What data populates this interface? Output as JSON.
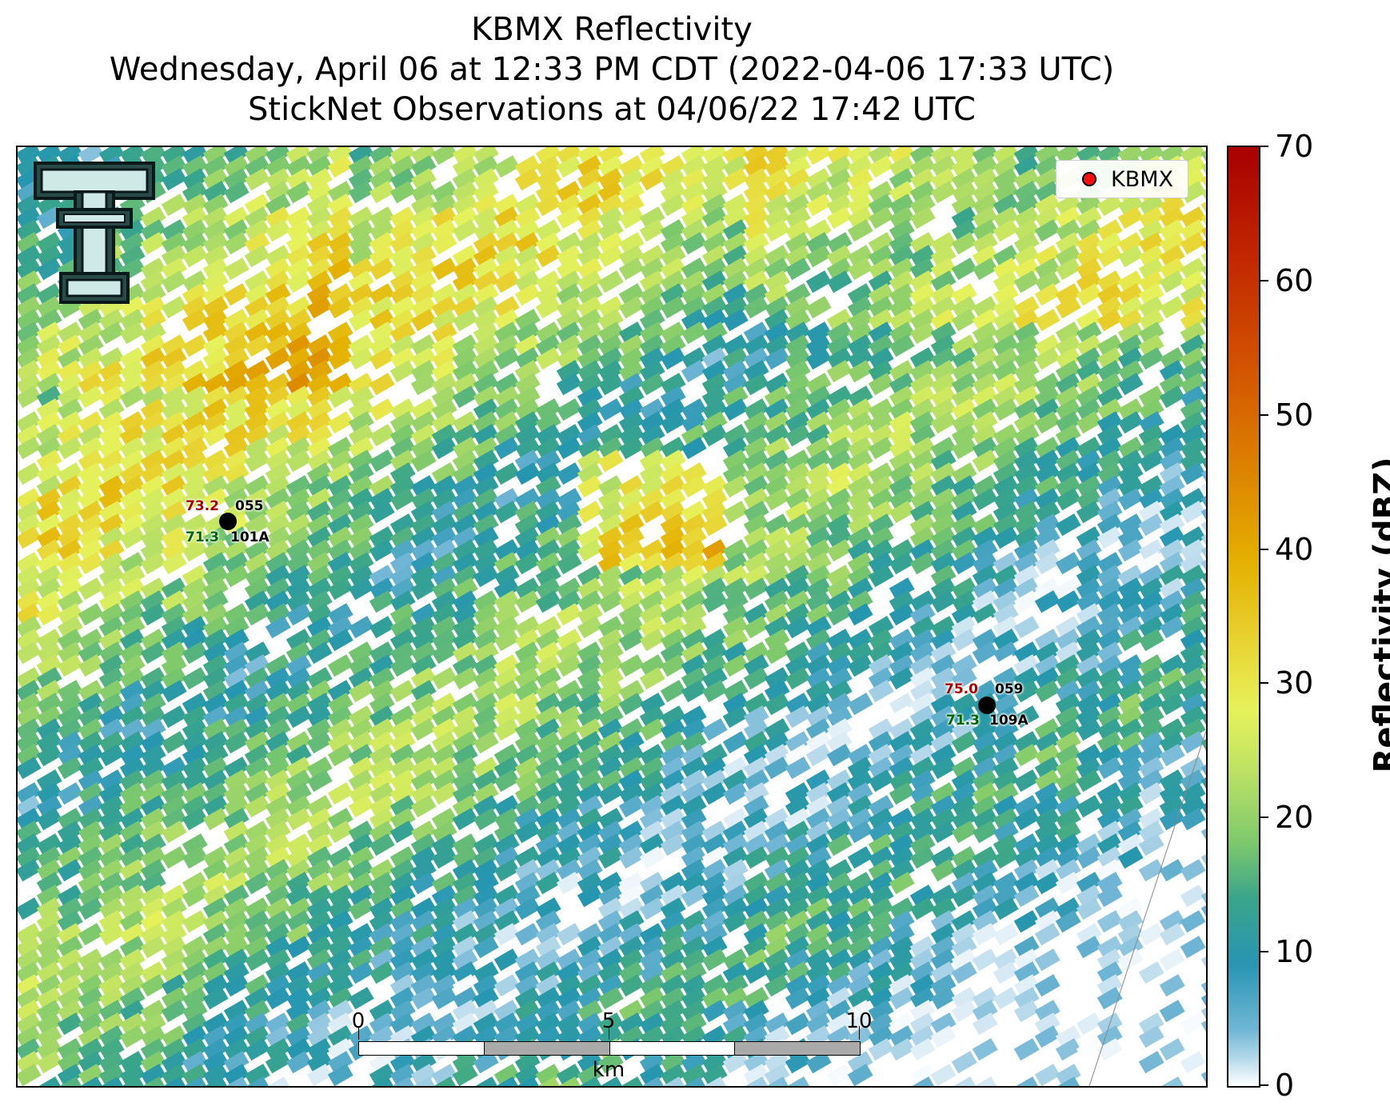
{
  "title": {
    "line1": "KBMX Reflectivity",
    "line2": "Wednesday, April 06 at 12:33 PM CDT (2022-04-06 17:33 UTC)",
    "line3": "StickNet Observations at 04/06/22 17:42 UTC"
  },
  "legend": {
    "label": "KBMX",
    "marker_color": "#ff1010"
  },
  "colorbar": {
    "title": "Reflectivity (dBZ)",
    "ticks": [
      "0",
      "10",
      "20",
      "30",
      "40",
      "50",
      "60",
      "70"
    ],
    "range": [
      0,
      70
    ]
  },
  "stations": [
    {
      "id": "055",
      "probe": "101A",
      "temperature": "73.2",
      "dewpoint": "71.3"
    },
    {
      "id": "059",
      "probe": "109A",
      "temperature": "75.0",
      "dewpoint": "71.3"
    }
  ],
  "scale_bar": {
    "labels": [
      "0",
      "5",
      "10"
    ],
    "unit": "km"
  },
  "colors": {
    "temperature": "#a80000",
    "dewpoint": "#006400",
    "station_marker": "#000000"
  },
  "logo": {
    "icon": "double-t-logo-icon"
  }
}
